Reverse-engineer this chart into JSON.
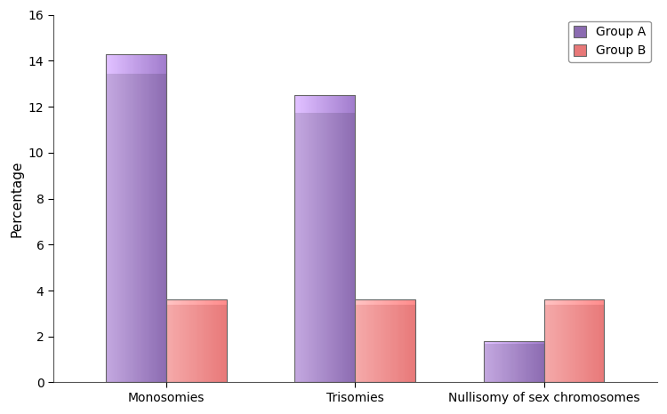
{
  "categories": [
    "Monosomies",
    "Trisomies",
    "Nullisomy of sex chromosomes"
  ],
  "group_a_values": [
    14.3,
    12.5,
    1.8
  ],
  "group_b_values": [
    3.6,
    3.6,
    3.6
  ],
  "group_a_color_main": "#8B6BB1",
  "group_a_color_light": "#C4A8E0",
  "group_b_color_main": "#E87878",
  "group_b_color_light": "#F5AAAA",
  "group_a_label": "Group A",
  "group_b_label": "Group B",
  "ylabel": "Percentage",
  "ylim": [
    0,
    16
  ],
  "yticks": [
    0,
    2,
    4,
    6,
    8,
    10,
    12,
    14,
    16
  ],
  "bar_width": 0.32,
  "background_color": "#ffffff",
  "edge_color": "#666666",
  "edge_linewidth": 0.8
}
